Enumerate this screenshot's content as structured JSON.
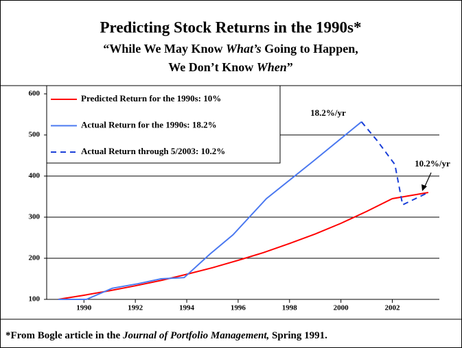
{
  "chart_data": {
    "type": "line",
    "title": "Predicting Stock Returns in the 1990s*",
    "subtitle": [
      [
        {
          "text": "“While We May Know ",
          "italic": false
        },
        {
          "text": "What’s",
          "italic": true
        },
        {
          "text": " Going to Happen,",
          "italic": false
        }
      ],
      [
        {
          "text": "We Don’t Know ",
          "italic": false
        },
        {
          "text": "When",
          "italic": true
        },
        {
          "text": "”",
          "italic": false
        }
      ]
    ],
    "series": [
      {
        "name": "Predicted Return for the 1990s: 10%",
        "color": "#ff0000",
        "dash": false,
        "x": [
          1989,
          1990,
          1991,
          1992,
          1993,
          1994,
          1995,
          1996,
          1997,
          1998,
          1999,
          2000,
          2001,
          2002,
          2003.4
        ],
        "values": [
          100,
          110,
          121,
          133,
          146,
          161,
          177,
          195,
          214,
          236,
          259,
          285,
          314,
          345,
          360
        ]
      },
      {
        "name": "Actual Return for the 1990s: 18.2%",
        "color": "#4a78f0",
        "dash": false,
        "x": [
          1989,
          1990.1,
          1991.1,
          1992.1,
          1993,
          1993.9,
          1994.9,
          1995.8,
          1997.1,
          1998.9,
          2000.8
        ],
        "values": [
          100,
          100,
          127,
          138,
          150,
          153,
          210,
          257,
          345,
          435,
          532
        ]
      },
      {
        "name": "Actual Return through 5/2003: 10.2%",
        "color": "#1a3fd8",
        "dash": true,
        "x": [
          2000.8,
          2001.4,
          2002.1,
          2002.4,
          2003.4
        ],
        "values": [
          532,
          487,
          428,
          330,
          360
        ]
      }
    ],
    "xlim": [
      1988.55,
      2003.83
    ],
    "xticks": [
      1990,
      1992,
      1994,
      1996,
      1998,
      2000,
      2002
    ],
    "ylim": [
      100,
      600
    ],
    "yticks": [
      100,
      200,
      300,
      400,
      500,
      600
    ],
    "grid": true,
    "legend": "upper left",
    "annotations": [
      "18.2%/yr",
      "10.2%/yr"
    ],
    "footnote": [
      {
        "text": "*From Bogle article in the ",
        "italic": false
      },
      {
        "text": "Journal of Portfolio Management,",
        "italic": true
      },
      {
        "text": " Spring 1991.",
        "italic": false
      }
    ]
  }
}
